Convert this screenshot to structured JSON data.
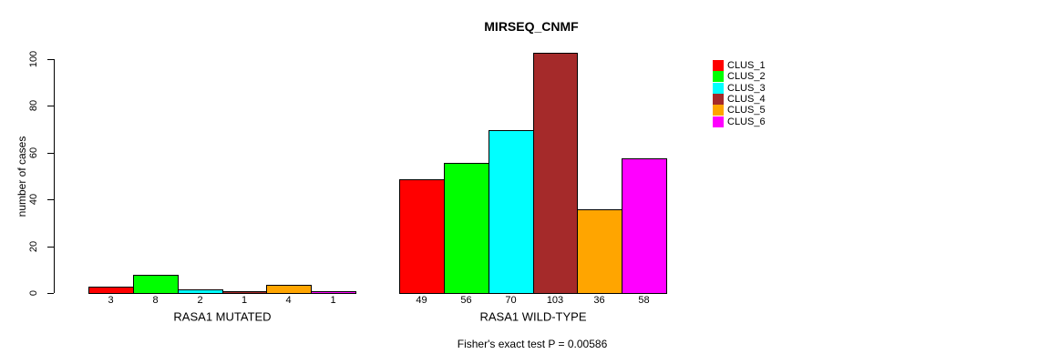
{
  "chart_data": {
    "type": "bar",
    "title": "MIRSEQ_CNMF",
    "ylabel": "number of cases",
    "xlabel": "",
    "ylim": [
      0,
      110
    ],
    "yticks": [
      0,
      20,
      40,
      60,
      80,
      100
    ],
    "grid": false,
    "legend_position": "right",
    "categories": [
      "RASA1 MUTATED",
      "RASA1 WILD-TYPE"
    ],
    "series": [
      {
        "name": "CLUS_1",
        "color": "#FF0000",
        "values": [
          3,
          49
        ]
      },
      {
        "name": "CLUS_2",
        "color": "#00FF00",
        "values": [
          8,
          56
        ]
      },
      {
        "name": "CLUS_3",
        "color": "#00FFFF",
        "values": [
          2,
          70
        ]
      },
      {
        "name": "CLUS_4",
        "color": "#A52A2A",
        "values": [
          1,
          103
        ]
      },
      {
        "name": "CLUS_5",
        "color": "#FFA500",
        "values": [
          4,
          36
        ]
      },
      {
        "name": "CLUS_6",
        "color": "#FF00FF",
        "values": [
          1,
          58
        ]
      }
    ],
    "bar_value_labels_shown": true,
    "footnote": "Fisher's exact test P = 0.00586"
  }
}
